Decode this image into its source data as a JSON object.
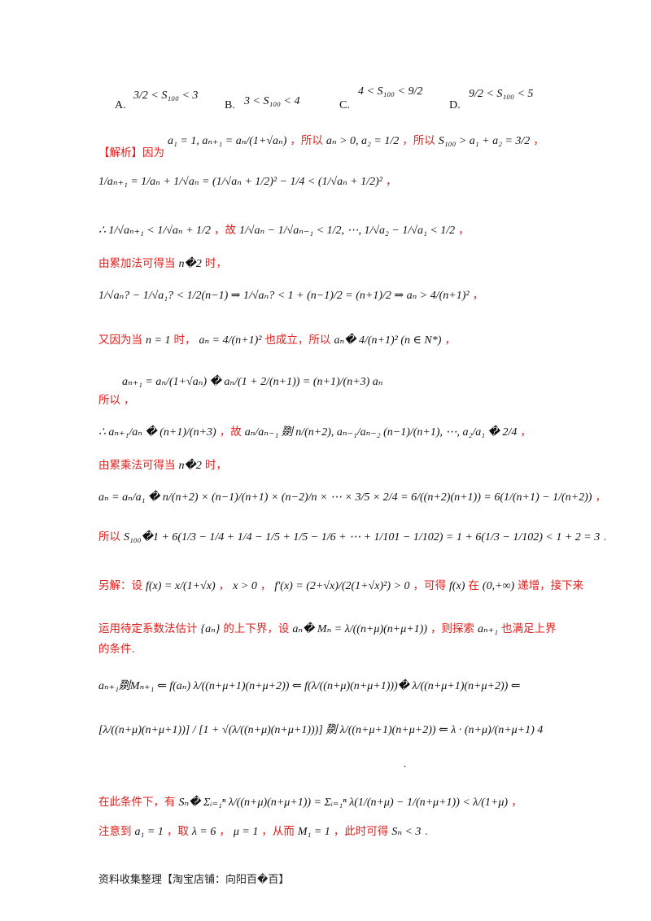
{
  "options": [
    {
      "label": "A.",
      "expr": "3/2 < S₁₀₀ < 3"
    },
    {
      "label": "B.",
      "expr": "3 < S₁₀₀ < 4"
    },
    {
      "label": "C.",
      "expr": "4 < S₁₀₀ < 9/2"
    },
    {
      "label": "D.",
      "expr": "9/2 < S₁₀₀ < 5"
    }
  ],
  "lines": [
    {
      "id": "l1",
      "segs": [
        {
          "c": "m",
          "t": "a₁ = 1, aₙ₊₁ = aₙ/(1+√aₙ)"
        },
        {
          "c": "red",
          "t": "，所以"
        },
        {
          "c": "m",
          "t": "aₙ > 0, a₂ = 1/2"
        },
        {
          "c": "red",
          "t": "，所以"
        },
        {
          "c": "m",
          "t": "S₁₀₀ > a₁ + a₂ = 3/2"
        },
        {
          "c": "red",
          "t": "，"
        }
      ]
    },
    {
      "id": "l1b",
      "segs": [
        {
          "c": "red",
          "t": "【解析】因为"
        }
      ]
    },
    {
      "id": "l2",
      "segs": [
        {
          "c": "m",
          "t": "1/aₙ₊₁ = 1/aₙ + 1/√aₙ = (1/√aₙ + 1/2)² − 1/4 < (1/√aₙ + 1/2)²"
        },
        {
          "c": "red",
          "t": "，"
        }
      ]
    },
    {
      "id": "l3",
      "segs": [
        {
          "c": "m",
          "t": "∴ 1/√aₙ₊₁ < 1/√aₙ + 1/2"
        },
        {
          "c": "red",
          "t": "，故"
        },
        {
          "c": "m",
          "t": "1/√aₙ − 1/√aₙ₋₁ < 1/2, ⋯, 1/√a₂ − 1/√a₁ < 1/2"
        },
        {
          "c": "red",
          "t": "，"
        }
      ]
    },
    {
      "id": "l4",
      "segs": [
        {
          "c": "red",
          "t": "由累加法可得当"
        },
        {
          "c": "m",
          "t": "n�2"
        },
        {
          "c": "red",
          "t": "时，"
        }
      ]
    },
    {
      "id": "l5",
      "segs": [
        {
          "c": "m",
          "t": "1/√aₙ? − 1/√a₁? < 1/2(n−1) ⇒ 1/√aₙ? < 1 + (n−1)/2 = (n+1)/2 ⇒ aₙ > 4/(n+1)²"
        },
        {
          "c": "red",
          "t": "，"
        }
      ]
    },
    {
      "id": "l6",
      "segs": [
        {
          "c": "red",
          "t": "又因为当"
        },
        {
          "c": "m",
          "t": "n = 1"
        },
        {
          "c": "red",
          "t": "时，"
        },
        {
          "c": "m",
          "t": "aₙ = 4/(n+1)²"
        },
        {
          "c": "red",
          "t": "也成立，所以"
        },
        {
          "c": "m",
          "t": "aₙ� 4/(n+1)² (n ∈ N*)"
        },
        {
          "c": "red",
          "t": "，"
        }
      ]
    },
    {
      "id": "l7",
      "segs": [
        {
          "c": "m",
          "t": "aₙ₊₁ = aₙ/(1+√aₙ) � aₙ/(1 + 2/(n+1)) = (n+1)/(n+3) aₙ"
        }
      ]
    },
    {
      "id": "l7b",
      "segs": [
        {
          "c": "red",
          "t": "所以"
        },
        {
          "c": "red",
          "t": "，"
        }
      ]
    },
    {
      "id": "l8",
      "segs": [
        {
          "c": "m",
          "t": "∴ aₙ₊₁/aₙ � (n+1)/(n+3)"
        },
        {
          "c": "red",
          "t": "，故"
        },
        {
          "c": "m",
          "t": "aₙ/aₙ₋₁ 剟 n/(n+2), aₙ₋₁/aₙ₋₂ (n−1)/(n+1), ⋯, a₂/a₁ � 2/4"
        },
        {
          "c": "red",
          "t": "，"
        }
      ]
    },
    {
      "id": "l9",
      "segs": [
        {
          "c": "red",
          "t": "由累乘法可得当"
        },
        {
          "c": "m",
          "t": "n�2"
        },
        {
          "c": "red",
          "t": "时，"
        }
      ]
    },
    {
      "id": "l10",
      "segs": [
        {
          "c": "m",
          "t": "aₙ = aₙ/a₁ � n/(n+2) × (n−1)/(n+1) × (n−2)/n × ⋯ × 3/5 × 2/4 = 6/((n+2)(n+1)) = 6(1/(n+1) − 1/(n+2))"
        },
        {
          "c": "red",
          "t": "，"
        }
      ]
    },
    {
      "id": "l11",
      "segs": [
        {
          "c": "red",
          "t": "所以"
        },
        {
          "c": "m",
          "t": "S₁₀₀�1 + 6(1/3 − 1/4 + 1/4 − 1/5 + 1/5 − 1/6 + ⋯ + 1/101 − 1/102) = 1 + 6(1/3 − 1/102) < 1 + 2 = 3"
        },
        {
          "c": "red",
          "t": "."
        }
      ]
    },
    {
      "id": "l12",
      "segs": [
        {
          "c": "red",
          "t": "另解：设"
        },
        {
          "c": "m",
          "t": "f(x) = x/(1+√x)"
        },
        {
          "c": "red",
          "t": "，"
        },
        {
          "c": "m",
          "t": "x > 0"
        },
        {
          "c": "red",
          "t": "，"
        },
        {
          "c": "m",
          "t": "f′(x) = (2+√x)/(2(1+√x)²) > 0"
        },
        {
          "c": "red",
          "t": "，可得"
        },
        {
          "c": "m",
          "t": "f(x)"
        },
        {
          "c": "red",
          "t": "在"
        },
        {
          "c": "m",
          "t": "(0,+∞)"
        },
        {
          "c": "red",
          "t": "递增，接下来"
        }
      ]
    },
    {
      "id": "l13",
      "segs": [
        {
          "c": "red",
          "t": "运用待定系数法估计"
        },
        {
          "c": "m",
          "t": "{aₙ}"
        },
        {
          "c": "red",
          "t": "的上下界，设"
        },
        {
          "c": "m",
          "t": "aₙ� Mₙ = λ/((n+μ)(n+μ+1))"
        },
        {
          "c": "red",
          "t": "，则探索"
        },
        {
          "c": "m",
          "t": "aₙ₊₁"
        },
        {
          "c": "red",
          "t": "也满足上界"
        }
      ]
    },
    {
      "id": "l13b",
      "segs": [
        {
          "c": "red",
          "t": "的条件."
        }
      ]
    },
    {
      "id": "l14",
      "segs": [
        {
          "c": "m",
          "t": "aₙ₊₁剟Mₙ₊₁ ⇐ f(aₙ)    λ/((n+μ+1)(n+μ+2)) ⇐ f(λ/((n+μ)(n+μ+1)))�  λ/((n+μ+1)(n+μ+2)) ⇐"
        }
      ]
    },
    {
      "id": "l15",
      "segs": [
        {
          "c": "m",
          "t": "[λ/((n+μ)(n+μ+1))] / [1 + √(λ/((n+μ)(n+μ+1)))] 剟 λ/((n+μ+1)(n+μ+2)) ⇐ λ · (n+μ)/(n+μ+1)    4"
        }
      ]
    },
    {
      "id": "l15b",
      "segs": [
        {
          "c": "m",
          "t": "."
        }
      ]
    },
    {
      "id": "l16",
      "segs": [
        {
          "c": "red",
          "t": "在此条件下，有"
        },
        {
          "c": "m",
          "t": "Sₙ� Σᵢ₌₁ⁿ λ/((n+μ)(n+μ+1)) = Σᵢ₌₁ⁿ λ(1/(n+μ) − 1/(n+μ+1)) < λ/(1+μ)"
        },
        {
          "c": "red",
          "t": "，"
        }
      ]
    },
    {
      "id": "l17",
      "segs": [
        {
          "c": "red",
          "t": "注意到"
        },
        {
          "c": "m",
          "t": "a₁ = 1"
        },
        {
          "c": "red",
          "t": "，取"
        },
        {
          "c": "m",
          "t": "λ = 6"
        },
        {
          "c": "red",
          "t": "，"
        },
        {
          "c": "m",
          "t": "μ = 1"
        },
        {
          "c": "red",
          "t": "，从而"
        },
        {
          "c": "m",
          "t": "M₁ = 1"
        },
        {
          "c": "red",
          "t": "，此时可得"
        },
        {
          "c": "m",
          "t": "Sₙ < 3"
        },
        {
          "c": "red",
          "t": "."
        }
      ]
    }
  ],
  "footer": "资料收集整理【淘宝店铺：向阳百�百】"
}
